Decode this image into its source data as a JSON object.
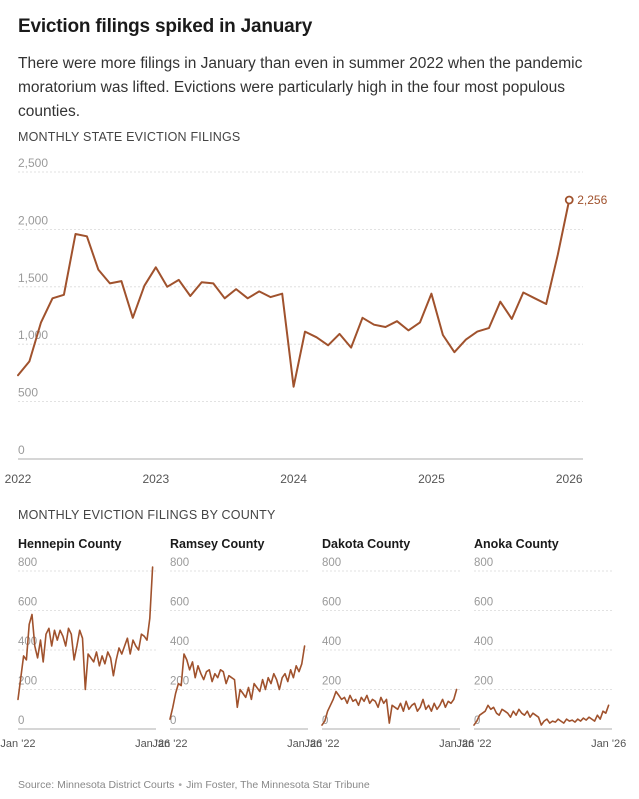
{
  "header": {
    "title": "Eviction filings spiked in January",
    "subtitle": "There were more filings in January than even in summer 2022 when the pandemic moratorium was lifted. Evictions were particularly high in the four most populous counties."
  },
  "main_chart_label": "MONTHLY STATE EVICTION FILINGS",
  "county_section_label": "MONTHLY EVICTION FILINGS BY COUNTY",
  "footer": {
    "source": "Source: Minnesota District Courts",
    "credit": "Jim Foster, The Minnesota Star Tribune",
    "separator": "•"
  },
  "colors": {
    "line": "#a0522d",
    "grid": "#d9d9d9",
    "baseline": "#bdbdbd"
  },
  "chart_data": [
    {
      "type": "line",
      "id": "state",
      "title": "MONTHLY STATE EVICTION FILINGS",
      "ylim": [
        0,
        2500
      ],
      "yticks": [
        0,
        500,
        1000,
        1500,
        2000,
        2500
      ],
      "ytick_labels": [
        "0",
        "500",
        "1,000",
        "1,500",
        "2,000",
        "2,500"
      ],
      "xlim": [
        2022,
        2026.1
      ],
      "xticks": [
        2022,
        2023,
        2024,
        2025,
        2026
      ],
      "xtick_labels": [
        "2022",
        "2023",
        "2024",
        "2025",
        "2026"
      ],
      "grid": true,
      "end_label": "2,256",
      "series": [
        {
          "x": [
            2022.0,
            2022.083,
            2022.167,
            2022.25,
            2022.333,
            2022.417,
            2022.5,
            2022.583,
            2022.667,
            2022.75,
            2022.833,
            2022.917,
            2023.0,
            2023.083,
            2023.167,
            2023.25,
            2023.333,
            2023.417,
            2023.5,
            2023.583,
            2023.667,
            2023.75,
            2023.833,
            2023.917,
            2024.0,
            2024.083,
            2024.167,
            2024.25,
            2024.333,
            2024.417,
            2024.5,
            2024.583,
            2024.667,
            2024.75,
            2024.833,
            2024.917,
            2025.0,
            2025.083,
            2025.167,
            2025.25,
            2025.333,
            2025.417,
            2025.5,
            2025.583,
            2025.667,
            2025.75,
            2025.833,
            2025.917,
            2026.0
          ],
          "y": [
            730,
            850,
            1190,
            1400,
            1430,
            1960,
            1940,
            1650,
            1530,
            1550,
            1230,
            1510,
            1670,
            1500,
            1560,
            1420,
            1540,
            1530,
            1400,
            1480,
            1400,
            1460,
            1410,
            1440,
            630,
            1110,
            1060,
            990,
            1090,
            970,
            1230,
            1170,
            1150,
            1200,
            1120,
            1190,
            1440,
            1080,
            930,
            1040,
            1110,
            1140,
            1370,
            1220,
            1450,
            1400,
            1350,
            1780,
            2256
          ]
        }
      ]
    },
    {
      "type": "line",
      "id": "hennepin",
      "title": "Hennepin County",
      "ylim": [
        0,
        800
      ],
      "yticks": [
        0,
        200,
        400,
        600,
        800
      ],
      "ytick_labels": [
        "0",
        "200",
        "400",
        "600",
        "800"
      ],
      "xlim": [
        2022,
        2026.1
      ],
      "xticks": [
        2022,
        2026
      ],
      "xtick_labels": [
        "Jan '22",
        "Jan '26"
      ],
      "grid": true,
      "series": [
        {
          "x": [
            2022.0,
            2022.083,
            2022.167,
            2022.25,
            2022.333,
            2022.417,
            2022.5,
            2022.583,
            2022.667,
            2022.75,
            2022.833,
            2022.917,
            2023.0,
            2023.083,
            2023.167,
            2023.25,
            2023.333,
            2023.417,
            2023.5,
            2023.583,
            2023.667,
            2023.75,
            2023.833,
            2023.917,
            2024.0,
            2024.083,
            2024.167,
            2024.25,
            2024.333,
            2024.417,
            2024.5,
            2024.583,
            2024.667,
            2024.75,
            2024.833,
            2024.917,
            2025.0,
            2025.083,
            2025.167,
            2025.25,
            2025.333,
            2025.417,
            2025.5,
            2025.583,
            2025.667,
            2025.75,
            2025.833,
            2025.917,
            2026.0
          ],
          "y": [
            150,
            260,
            370,
            350,
            530,
            580,
            420,
            360,
            450,
            340,
            480,
            510,
            420,
            500,
            450,
            500,
            470,
            420,
            510,
            480,
            350,
            420,
            500,
            460,
            200,
            380,
            360,
            340,
            390,
            320,
            370,
            330,
            390,
            360,
            270,
            350,
            410,
            380,
            420,
            460,
            380,
            450,
            420,
            400,
            480,
            470,
            450,
            560,
            820
          ]
        }
      ]
    },
    {
      "type": "line",
      "id": "ramsey",
      "title": "Ramsey County",
      "ylim": [
        0,
        800
      ],
      "yticks": [
        0,
        200,
        400,
        600,
        800
      ],
      "ytick_labels": [
        "0",
        "200",
        "400",
        "600",
        "800"
      ],
      "xlim": [
        2022,
        2026.1
      ],
      "xticks": [
        2022,
        2026
      ],
      "xtick_labels": [
        "Jan '22",
        "Jan '26"
      ],
      "grid": true,
      "series": [
        {
          "x": [
            2022.0,
            2022.083,
            2022.167,
            2022.25,
            2022.333,
            2022.417,
            2022.5,
            2022.583,
            2022.667,
            2022.75,
            2022.833,
            2022.917,
            2023.0,
            2023.083,
            2023.167,
            2023.25,
            2023.333,
            2023.417,
            2023.5,
            2023.583,
            2023.667,
            2023.75,
            2023.833,
            2023.917,
            2024.0,
            2024.083,
            2024.167,
            2024.25,
            2024.333,
            2024.417,
            2024.5,
            2024.583,
            2024.667,
            2024.75,
            2024.833,
            2024.917,
            2025.0,
            2025.083,
            2025.167,
            2025.25,
            2025.333,
            2025.417,
            2025.5,
            2025.583,
            2025.667,
            2025.75,
            2025.833,
            2025.917,
            2026.0
          ],
          "y": [
            50,
            110,
            180,
            230,
            220,
            380,
            350,
            300,
            340,
            260,
            320,
            280,
            250,
            290,
            300,
            240,
            280,
            260,
            300,
            290,
            230,
            270,
            260,
            250,
            110,
            200,
            180,
            160,
            210,
            150,
            230,
            210,
            190,
            250,
            200,
            260,
            230,
            280,
            250,
            200,
            260,
            280,
            240,
            300,
            260,
            320,
            290,
            330,
            420
          ]
        }
      ]
    },
    {
      "type": "line",
      "id": "dakota",
      "title": "Dakota County",
      "ylim": [
        0,
        800
      ],
      "yticks": [
        0,
        200,
        400,
        600,
        800
      ],
      "ytick_labels": [
        "0",
        "200",
        "400",
        "600",
        "800"
      ],
      "xlim": [
        2022,
        2026.1
      ],
      "xticks": [
        2022,
        2026
      ],
      "xtick_labels": [
        "Jan '22",
        "Jan '26"
      ],
      "grid": true,
      "series": [
        {
          "x": [
            2022.0,
            2022.083,
            2022.167,
            2022.25,
            2022.333,
            2022.417,
            2022.5,
            2022.583,
            2022.667,
            2022.75,
            2022.833,
            2022.917,
            2023.0,
            2023.083,
            2023.167,
            2023.25,
            2023.333,
            2023.417,
            2023.5,
            2023.583,
            2023.667,
            2023.75,
            2023.833,
            2023.917,
            2024.0,
            2024.083,
            2024.167,
            2024.25,
            2024.333,
            2024.417,
            2024.5,
            2024.583,
            2024.667,
            2024.75,
            2024.833,
            2024.917,
            2025.0,
            2025.083,
            2025.167,
            2025.25,
            2025.333,
            2025.417,
            2025.5,
            2025.583,
            2025.667,
            2025.75,
            2025.833,
            2025.917,
            2026.0
          ],
          "y": [
            20,
            40,
            90,
            120,
            150,
            190,
            170,
            150,
            160,
            130,
            170,
            140,
            150,
            120,
            160,
            140,
            170,
            130,
            150,
            140,
            110,
            160,
            130,
            150,
            30,
            120,
            110,
            100,
            130,
            90,
            140,
            100,
            120,
            130,
            90,
            110,
            150,
            100,
            120,
            90,
            130,
            100,
            120,
            150,
            110,
            140,
            130,
            150,
            200
          ]
        }
      ]
    },
    {
      "type": "line",
      "id": "anoka",
      "title": "Anoka County",
      "ylim": [
        0,
        800
      ],
      "yticks": [
        0,
        200,
        400,
        600,
        800
      ],
      "ytick_labels": [
        "0",
        "200",
        "400",
        "600",
        "800"
      ],
      "xlim": [
        2022,
        2026.1
      ],
      "xticks": [
        2022,
        2026
      ],
      "xtick_labels": [
        "Jan '22",
        "Jan '26"
      ],
      "grid": true,
      "series": [
        {
          "x": [
            2022.0,
            2022.083,
            2022.167,
            2022.25,
            2022.333,
            2022.417,
            2022.5,
            2022.583,
            2022.667,
            2022.75,
            2022.833,
            2022.917,
            2023.0,
            2023.083,
            2023.167,
            2023.25,
            2023.333,
            2023.417,
            2023.5,
            2023.583,
            2023.667,
            2023.75,
            2023.833,
            2023.917,
            2024.0,
            2024.083,
            2024.167,
            2024.25,
            2024.333,
            2024.417,
            2024.5,
            2024.583,
            2024.667,
            2024.75,
            2024.833,
            2024.917,
            2025.0,
            2025.083,
            2025.167,
            2025.25,
            2025.333,
            2025.417,
            2025.5,
            2025.583,
            2025.667,
            2025.75,
            2025.833,
            2025.917,
            2026.0
          ],
          "y": [
            20,
            40,
            70,
            80,
            90,
            120,
            100,
            110,
            80,
            70,
            100,
            90,
            80,
            60,
            90,
            70,
            100,
            80,
            70,
            90,
            60,
            80,
            70,
            60,
            20,
            40,
            50,
            30,
            40,
            35,
            50,
            40,
            30,
            50,
            40,
            45,
            35,
            50,
            40,
            55,
            45,
            60,
            50,
            40,
            70,
            50,
            90,
            80,
            120
          ]
        }
      ]
    }
  ]
}
